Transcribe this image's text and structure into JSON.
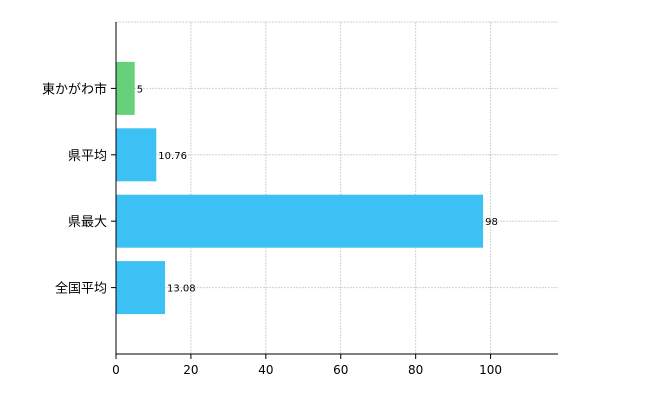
{
  "chart_data": {
    "type": "bar",
    "orientation": "horizontal",
    "categories": [
      "東かがわ市",
      "県平均",
      "県最大",
      "全国平均"
    ],
    "values": [
      5,
      10.76,
      98,
      13.08
    ],
    "data_labels": [
      "5",
      "10.76",
      "98",
      "13.08"
    ],
    "bar_colors": [
      "#66d17a",
      "#3bc1f3",
      "#3bc1f3",
      "#3bc1f3"
    ],
    "xlim": [
      0,
      118
    ],
    "x_ticks": [
      0,
      20,
      40,
      60,
      80,
      100
    ],
    "x_tick_labels": [
      "0",
      "20",
      "40",
      "60",
      "80",
      "100"
    ],
    "grid": true,
    "title": "",
    "xlabel": "",
    "ylabel": ""
  }
}
